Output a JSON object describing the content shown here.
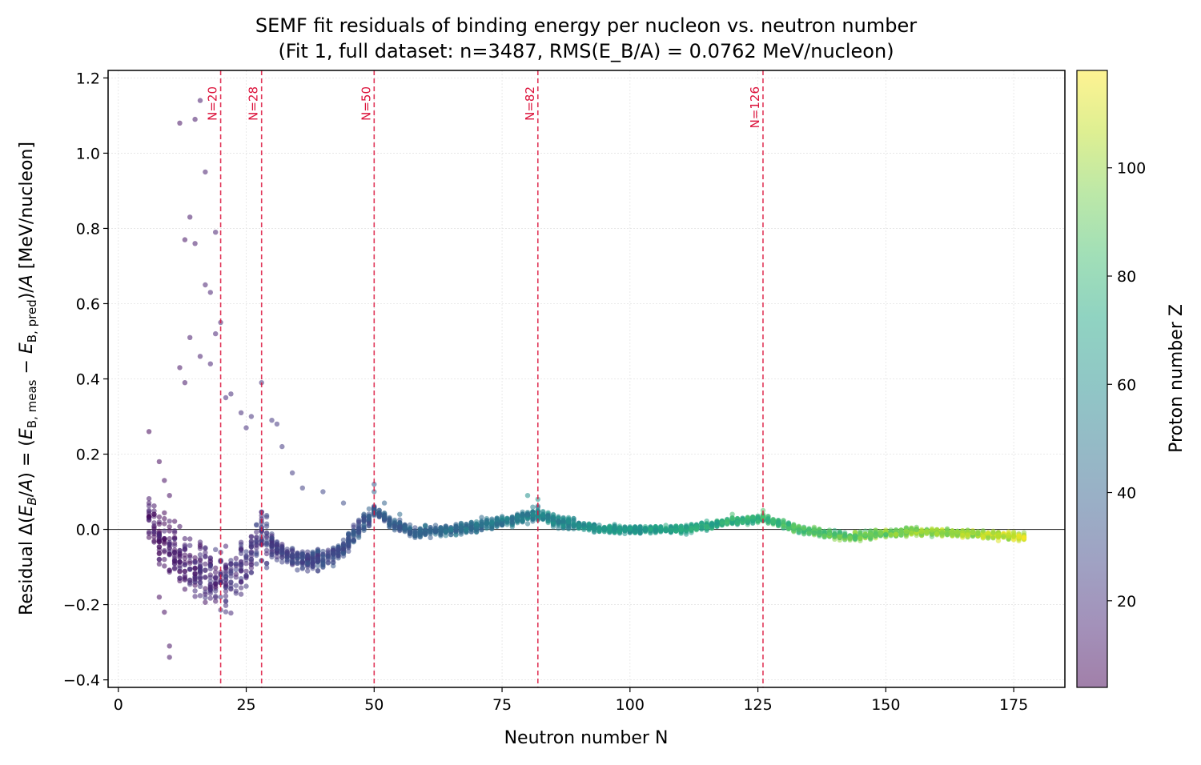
{
  "chart_data": {
    "type": "scatter",
    "title": "SEMF fit residuals of binding energy per nucleon vs. neutron number",
    "subtitle": "(Fit 1, full dataset: n=3487, RMS(E_B/A) = 0.0762 MeV/nucleon)",
    "xlabel": "Neutron number N",
    "ylabel": {
      "prefix": "Residual Δ(",
      "eb": "E",
      "eb_sub": "B",
      "mid1": "/",
      "a1": "A",
      "mid2": ") = (",
      "e1": "E",
      "e1_sub": "B, meas",
      "minus": " − ",
      "e2": "E",
      "e2_sub": "B, pred",
      "mid3": ")/",
      "a2": "A",
      "units": "  [MeV/nucleon]"
    },
    "colorbar_label": "Proton number Z",
    "xlim": [
      -2,
      185
    ],
    "ylim": [
      -0.42,
      1.22
    ],
    "x_ticks": [
      0,
      25,
      50,
      75,
      100,
      125,
      150,
      175
    ],
    "y_ticks": [
      -0.4,
      -0.2,
      0.0,
      0.2,
      0.4,
      0.6,
      0.8,
      1.0,
      1.2
    ],
    "y_tick_labels": [
      "−0.4",
      "−0.2",
      "0.0",
      "0.2",
      "0.4",
      "0.6",
      "0.8",
      "1.0",
      "1.2"
    ],
    "colorbar_range": [
      4,
      118
    ],
    "colorbar_ticks": [
      20,
      40,
      60,
      80,
      100
    ],
    "colormap": "viridis",
    "grid": true,
    "zero_line": 0.0,
    "shell_closures": [
      {
        "n": 20,
        "label": "N=20"
      },
      {
        "n": 28,
        "label": "N=28"
      },
      {
        "n": 50,
        "label": "N=50"
      },
      {
        "n": 82,
        "label": "N=82"
      },
      {
        "n": 126,
        "label": "N=126"
      }
    ],
    "shell_color": "#dc143c",
    "points_light_sample": [
      [
        6,
        0.26,
        6
      ],
      [
        7,
        0.04,
        6
      ],
      [
        7,
        -0.02,
        7
      ],
      [
        8,
        0.18,
        7
      ],
      [
        8,
        -0.18,
        7
      ],
      [
        9,
        0.13,
        8
      ],
      [
        9,
        -0.22,
        8
      ],
      [
        10,
        0.09,
        8
      ],
      [
        10,
        -0.31,
        9
      ],
      [
        10,
        -0.34,
        10
      ],
      [
        11,
        -0.06,
        10
      ],
      [
        12,
        1.08,
        9
      ],
      [
        12,
        0.43,
        10
      ],
      [
        13,
        0.77,
        10
      ],
      [
        13,
        0.39,
        11
      ],
      [
        14,
        0.83,
        11
      ],
      [
        14,
        0.51,
        12
      ],
      [
        15,
        1.09,
        11
      ],
      [
        15,
        0.76,
        12
      ],
      [
        16,
        1.14,
        12
      ],
      [
        16,
        0.46,
        13
      ],
      [
        17,
        0.95,
        13
      ],
      [
        17,
        0.65,
        14
      ],
      [
        18,
        0.63,
        14
      ],
      [
        18,
        0.44,
        15
      ],
      [
        19,
        0.52,
        15
      ],
      [
        19,
        0.79,
        14
      ],
      [
        20,
        0.55,
        16
      ],
      [
        21,
        0.35,
        17
      ],
      [
        22,
        0.36,
        18
      ],
      [
        24,
        0.31,
        18
      ],
      [
        25,
        0.27,
        19
      ],
      [
        26,
        0.3,
        20
      ],
      [
        28,
        0.39,
        20
      ],
      [
        30,
        0.29,
        22
      ],
      [
        31,
        0.28,
        22
      ],
      [
        32,
        0.22,
        23
      ],
      [
        34,
        0.15,
        24
      ],
      [
        36,
        0.11,
        25
      ],
      [
        40,
        0.1,
        28
      ],
      [
        44,
        0.07,
        30
      ],
      [
        50,
        0.12,
        36
      ],
      [
        50,
        0.1,
        40
      ],
      [
        52,
        0.07,
        40
      ],
      [
        55,
        0.04,
        44
      ],
      [
        60,
        0.01,
        50
      ],
      [
        70,
        0.02,
        54
      ],
      [
        80,
        0.09,
        60
      ],
      [
        82,
        0.08,
        62
      ],
      [
        90,
        0.01,
        66
      ],
      [
        100,
        0.0,
        70
      ],
      [
        110,
        0.0,
        76
      ],
      [
        120,
        0.04,
        84
      ],
      [
        126,
        0.05,
        86
      ],
      [
        135,
        -0.01,
        90
      ],
      [
        145,
        -0.03,
        96
      ],
      [
        155,
        -0.01,
        104
      ],
      [
        165,
        -0.01,
        108
      ],
      [
        172,
        -0.03,
        112
      ],
      [
        177,
        -0.02,
        116
      ]
    ]
  }
}
